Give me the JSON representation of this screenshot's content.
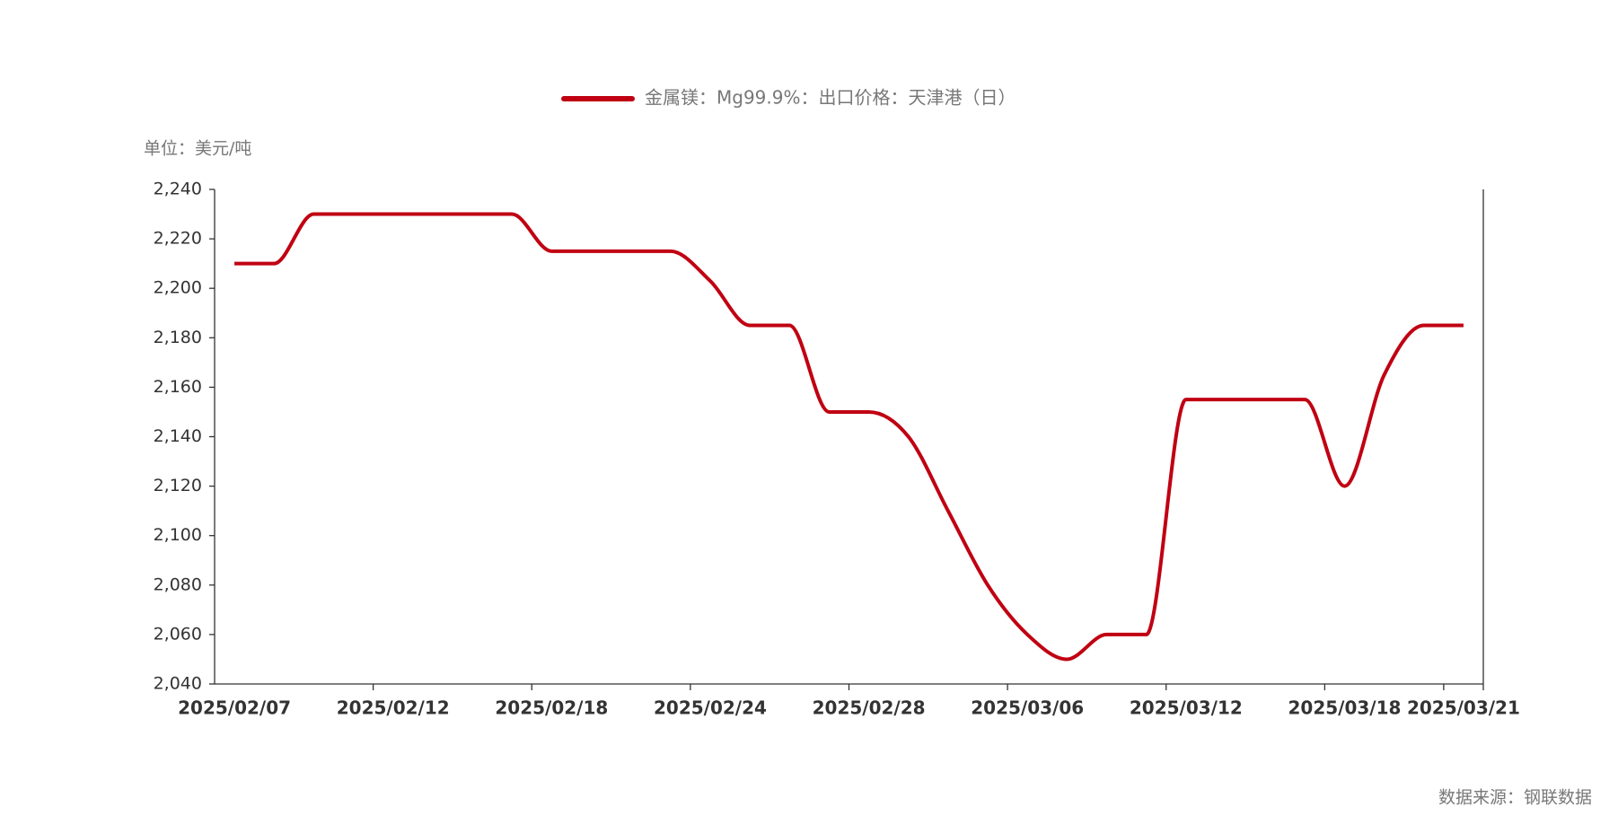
{
  "chart_data": {
    "type": "line",
    "unit_label": "单位：美元/吨",
    "source": "数据来源：钢联数据",
    "categories": [
      "2025/02/07",
      null,
      null,
      null,
      "2025/02/12",
      null,
      null,
      null,
      "2025/02/18",
      null,
      null,
      null,
      "2025/02/24",
      null,
      null,
      null,
      "2025/02/28",
      null,
      null,
      null,
      "2025/03/06",
      null,
      null,
      null,
      "2025/03/12",
      null,
      null,
      null,
      "2025/03/18",
      null,
      null,
      "2025/03/21"
    ],
    "series": [
      {
        "name": "金属镁：Mg99.9%：出口价格：天津港（日）",
        "color": "#c00012",
        "values": [
          2210,
          2210,
          2230,
          2230,
          2230,
          2230,
          2230,
          2230,
          2215,
          2215,
          2215,
          2215,
          2203,
          2185,
          2185,
          2150,
          2150,
          2140,
          2110,
          2080,
          2060,
          2050,
          2060,
          2060,
          2155,
          2155,
          2155,
          2155,
          2120,
          2165,
          2185,
          2185
        ]
      }
    ],
    "ylim": [
      2040,
      2240
    ],
    "yticks": [
      {
        "value": 2040,
        "label": "2,040"
      },
      {
        "value": 2060,
        "label": "2,060"
      },
      {
        "value": 2080,
        "label": "2,080"
      },
      {
        "value": 2100,
        "label": "2,100"
      },
      {
        "value": 2120,
        "label": "2,120"
      },
      {
        "value": 2140,
        "label": "2,140"
      },
      {
        "value": 2160,
        "label": "2,160"
      },
      {
        "value": 2180,
        "label": "2,180"
      },
      {
        "value": 2200,
        "label": "2,200"
      },
      {
        "value": 2220,
        "label": "2,220"
      },
      {
        "value": 2240,
        "label": "2,240"
      }
    ],
    "grid": false
  }
}
